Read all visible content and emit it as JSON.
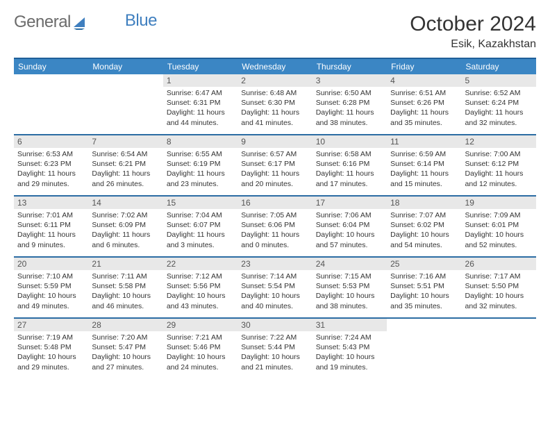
{
  "logo": {
    "text1": "General",
    "text2": "Blue"
  },
  "title": "October 2024",
  "location": "Esik, Kazakhstan",
  "colors": {
    "header_bar": "#3b86c4",
    "week_divider": "#2b6ca3",
    "daynum_bg": "#e8e8e8",
    "logo_gray": "#6b6b6b",
    "logo_blue": "#3f7fbf",
    "text": "#333333",
    "background": "#ffffff"
  },
  "font": {
    "family": "Arial",
    "title_size_pt": 22,
    "location_size_pt": 12,
    "dayheader_size_pt": 9,
    "cell_size_pt": 8
  },
  "dayHeaders": [
    "Sunday",
    "Monday",
    "Tuesday",
    "Wednesday",
    "Thursday",
    "Friday",
    "Saturday"
  ],
  "weeks": [
    [
      null,
      null,
      {
        "num": "1",
        "sunrise": "Sunrise: 6:47 AM",
        "sunset": "Sunset: 6:31 PM",
        "daylight": "Daylight: 11 hours and 44 minutes."
      },
      {
        "num": "2",
        "sunrise": "Sunrise: 6:48 AM",
        "sunset": "Sunset: 6:30 PM",
        "daylight": "Daylight: 11 hours and 41 minutes."
      },
      {
        "num": "3",
        "sunrise": "Sunrise: 6:50 AM",
        "sunset": "Sunset: 6:28 PM",
        "daylight": "Daylight: 11 hours and 38 minutes."
      },
      {
        "num": "4",
        "sunrise": "Sunrise: 6:51 AM",
        "sunset": "Sunset: 6:26 PM",
        "daylight": "Daylight: 11 hours and 35 minutes."
      },
      {
        "num": "5",
        "sunrise": "Sunrise: 6:52 AM",
        "sunset": "Sunset: 6:24 PM",
        "daylight": "Daylight: 11 hours and 32 minutes."
      }
    ],
    [
      {
        "num": "6",
        "sunrise": "Sunrise: 6:53 AM",
        "sunset": "Sunset: 6:23 PM",
        "daylight": "Daylight: 11 hours and 29 minutes."
      },
      {
        "num": "7",
        "sunrise": "Sunrise: 6:54 AM",
        "sunset": "Sunset: 6:21 PM",
        "daylight": "Daylight: 11 hours and 26 minutes."
      },
      {
        "num": "8",
        "sunrise": "Sunrise: 6:55 AM",
        "sunset": "Sunset: 6:19 PM",
        "daylight": "Daylight: 11 hours and 23 minutes."
      },
      {
        "num": "9",
        "sunrise": "Sunrise: 6:57 AM",
        "sunset": "Sunset: 6:17 PM",
        "daylight": "Daylight: 11 hours and 20 minutes."
      },
      {
        "num": "10",
        "sunrise": "Sunrise: 6:58 AM",
        "sunset": "Sunset: 6:16 PM",
        "daylight": "Daylight: 11 hours and 17 minutes."
      },
      {
        "num": "11",
        "sunrise": "Sunrise: 6:59 AM",
        "sunset": "Sunset: 6:14 PM",
        "daylight": "Daylight: 11 hours and 15 minutes."
      },
      {
        "num": "12",
        "sunrise": "Sunrise: 7:00 AM",
        "sunset": "Sunset: 6:12 PM",
        "daylight": "Daylight: 11 hours and 12 minutes."
      }
    ],
    [
      {
        "num": "13",
        "sunrise": "Sunrise: 7:01 AM",
        "sunset": "Sunset: 6:11 PM",
        "daylight": "Daylight: 11 hours and 9 minutes."
      },
      {
        "num": "14",
        "sunrise": "Sunrise: 7:02 AM",
        "sunset": "Sunset: 6:09 PM",
        "daylight": "Daylight: 11 hours and 6 minutes."
      },
      {
        "num": "15",
        "sunrise": "Sunrise: 7:04 AM",
        "sunset": "Sunset: 6:07 PM",
        "daylight": "Daylight: 11 hours and 3 minutes."
      },
      {
        "num": "16",
        "sunrise": "Sunrise: 7:05 AM",
        "sunset": "Sunset: 6:06 PM",
        "daylight": "Daylight: 11 hours and 0 minutes."
      },
      {
        "num": "17",
        "sunrise": "Sunrise: 7:06 AM",
        "sunset": "Sunset: 6:04 PM",
        "daylight": "Daylight: 10 hours and 57 minutes."
      },
      {
        "num": "18",
        "sunrise": "Sunrise: 7:07 AM",
        "sunset": "Sunset: 6:02 PM",
        "daylight": "Daylight: 10 hours and 54 minutes."
      },
      {
        "num": "19",
        "sunrise": "Sunrise: 7:09 AM",
        "sunset": "Sunset: 6:01 PM",
        "daylight": "Daylight: 10 hours and 52 minutes."
      }
    ],
    [
      {
        "num": "20",
        "sunrise": "Sunrise: 7:10 AM",
        "sunset": "Sunset: 5:59 PM",
        "daylight": "Daylight: 10 hours and 49 minutes."
      },
      {
        "num": "21",
        "sunrise": "Sunrise: 7:11 AM",
        "sunset": "Sunset: 5:58 PM",
        "daylight": "Daylight: 10 hours and 46 minutes."
      },
      {
        "num": "22",
        "sunrise": "Sunrise: 7:12 AM",
        "sunset": "Sunset: 5:56 PM",
        "daylight": "Daylight: 10 hours and 43 minutes."
      },
      {
        "num": "23",
        "sunrise": "Sunrise: 7:14 AM",
        "sunset": "Sunset: 5:54 PM",
        "daylight": "Daylight: 10 hours and 40 minutes."
      },
      {
        "num": "24",
        "sunrise": "Sunrise: 7:15 AM",
        "sunset": "Sunset: 5:53 PM",
        "daylight": "Daylight: 10 hours and 38 minutes."
      },
      {
        "num": "25",
        "sunrise": "Sunrise: 7:16 AM",
        "sunset": "Sunset: 5:51 PM",
        "daylight": "Daylight: 10 hours and 35 minutes."
      },
      {
        "num": "26",
        "sunrise": "Sunrise: 7:17 AM",
        "sunset": "Sunset: 5:50 PM",
        "daylight": "Daylight: 10 hours and 32 minutes."
      }
    ],
    [
      {
        "num": "27",
        "sunrise": "Sunrise: 7:19 AM",
        "sunset": "Sunset: 5:48 PM",
        "daylight": "Daylight: 10 hours and 29 minutes."
      },
      {
        "num": "28",
        "sunrise": "Sunrise: 7:20 AM",
        "sunset": "Sunset: 5:47 PM",
        "daylight": "Daylight: 10 hours and 27 minutes."
      },
      {
        "num": "29",
        "sunrise": "Sunrise: 7:21 AM",
        "sunset": "Sunset: 5:46 PM",
        "daylight": "Daylight: 10 hours and 24 minutes."
      },
      {
        "num": "30",
        "sunrise": "Sunrise: 7:22 AM",
        "sunset": "Sunset: 5:44 PM",
        "daylight": "Daylight: 10 hours and 21 minutes."
      },
      {
        "num": "31",
        "sunrise": "Sunrise: 7:24 AM",
        "sunset": "Sunset: 5:43 PM",
        "daylight": "Daylight: 10 hours and 19 minutes."
      },
      null,
      null
    ]
  ]
}
